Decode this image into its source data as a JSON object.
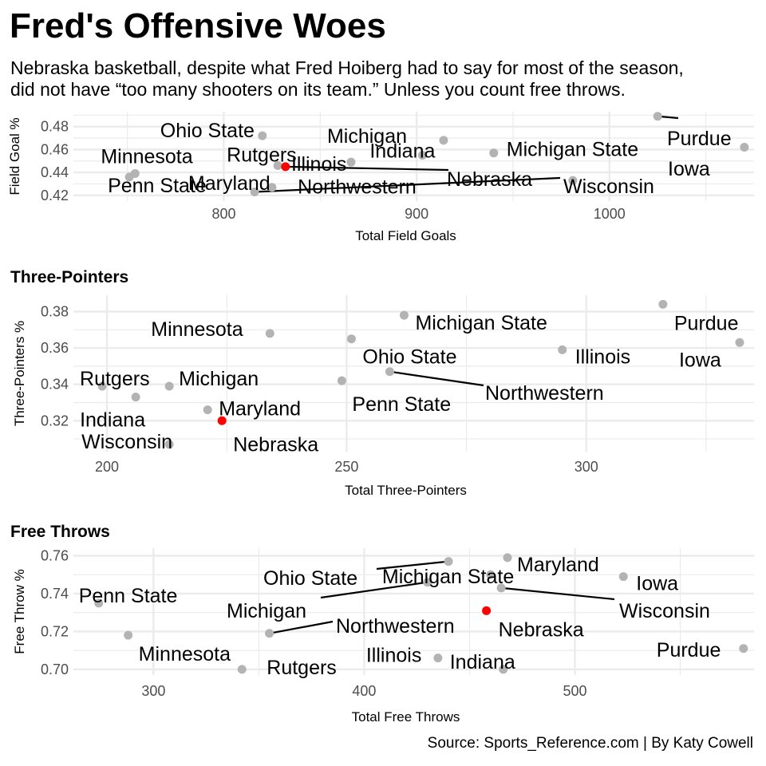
{
  "header": {
    "title": "Fred's Offensive Woes",
    "subtitle_line1": "Nebraska basketball, despite what Fred Hoiberg had to say for most of the season,",
    "subtitle_line2": "did not have “too many shooters on its team.” Unless you count free throws."
  },
  "caption": "Source: Sports_Reference.com | By Katy Cowell",
  "colors": {
    "highlight": "#ff0000",
    "point": "#b3b3b3",
    "grid": "#ebebeb",
    "tick_text": "#4d4d4d",
    "segment": "#000000"
  },
  "chart_data": [
    {
      "type": "scatter",
      "title": "",
      "xlabel": "Total Field Goals",
      "ylabel": "Field Goal %",
      "xlim": [
        722,
        1075
      ],
      "ylim": [
        0.415,
        0.493
      ],
      "xticks": [
        800,
        900,
        1000
      ],
      "yticks": [
        0.42,
        0.44,
        0.46,
        0.48
      ],
      "points": [
        {
          "team": "Ohio State",
          "x": 820,
          "y": 0.472
        },
        {
          "team": "Minnesota",
          "x": 754,
          "y": 0.439
        },
        {
          "team": "Penn State",
          "x": 751,
          "y": 0.436
        },
        {
          "team": "Rutgers",
          "x": 828,
          "y": 0.446
        },
        {
          "team": "Maryland",
          "x": 825,
          "y": 0.427
        },
        {
          "team": "Nebraska",
          "x": 832,
          "y": 0.445,
          "highlight": true
        },
        {
          "team": "Northwestern",
          "x": 816,
          "y": 0.423
        },
        {
          "team": "Illinois",
          "x": 866,
          "y": 0.449
        },
        {
          "team": "Indiana",
          "x": 903,
          "y": 0.455
        },
        {
          "team": "Michigan",
          "x": 914,
          "y": 0.468
        },
        {
          "team": "Michigan State",
          "x": 940,
          "y": 0.457
        },
        {
          "team": "Wisconsin",
          "x": 981,
          "y": 0.433
        },
        {
          "team": "Purdue",
          "x": 1025,
          "y": 0.489
        },
        {
          "team": "Iowa",
          "x": 1070,
          "y": 0.462
        }
      ]
    },
    {
      "type": "scatter",
      "title": "Three-Pointers",
      "xlabel": "Total Three-Pointers",
      "ylabel": "Three-Pointers %",
      "xlim": [
        193,
        335
      ],
      "ylim": [
        0.303,
        0.389
      ],
      "xticks": [
        200,
        250,
        300
      ],
      "yticks": [
        0.32,
        0.34,
        0.36,
        0.38
      ],
      "points": [
        {
          "team": "Minnesota",
          "x": 234,
          "y": 0.368
        },
        {
          "team": "Michigan State",
          "x": 262,
          "y": 0.378
        },
        {
          "team": "Purdue",
          "x": 316,
          "y": 0.384
        },
        {
          "team": "Iowa",
          "x": 332,
          "y": 0.363
        },
        {
          "team": "Illinois",
          "x": 295,
          "y": 0.359
        },
        {
          "team": "Ohio State",
          "x": 251,
          "y": 0.365
        },
        {
          "team": "Northwestern",
          "x": 259,
          "y": 0.347
        },
        {
          "team": "Penn State",
          "x": 249,
          "y": 0.342
        },
        {
          "team": "Rutgers",
          "x": 199,
          "y": 0.339
        },
        {
          "team": "Michigan",
          "x": 213,
          "y": 0.339
        },
        {
          "team": "Indiana",
          "x": 206,
          "y": 0.333
        },
        {
          "team": "Maryland",
          "x": 221,
          "y": 0.326
        },
        {
          "team": "Nebraska",
          "x": 224,
          "y": 0.32,
          "highlight": true
        },
        {
          "team": "Wisconsin",
          "x": 213,
          "y": 0.307
        }
      ]
    },
    {
      "type": "scatter",
      "title": "Free Throws",
      "xlabel": "Total Free Throws",
      "ylabel": "Free Throw %",
      "xlim": [
        262,
        585
      ],
      "ylim": [
        0.697,
        0.764
      ],
      "xticks": [
        300,
        400,
        500
      ],
      "yticks": [
        0.7,
        0.72,
        0.74,
        0.76
      ],
      "points": [
        {
          "team": "Ohio State",
          "x": 440,
          "y": 0.757
        },
        {
          "team": "Maryland",
          "x": 468,
          "y": 0.759
        },
        {
          "team": "Iowa",
          "x": 523,
          "y": 0.749
        },
        {
          "team": "Michigan State",
          "x": 460,
          "y": 0.75
        },
        {
          "team": "Wisconsin",
          "x": 465,
          "y": 0.743
        },
        {
          "team": "Michigan",
          "x": 430,
          "y": 0.746
        },
        {
          "team": "Penn State",
          "x": 274,
          "y": 0.735
        },
        {
          "team": "Nebraska",
          "x": 458,
          "y": 0.731,
          "highlight": true
        },
        {
          "team": "Northwestern",
          "x": 355,
          "y": 0.719
        },
        {
          "team": "Minnesota",
          "x": 288,
          "y": 0.718
        },
        {
          "team": "Rutgers",
          "x": 342,
          "y": 0.7
        },
        {
          "team": "Illinois",
          "x": 435,
          "y": 0.706
        },
        {
          "team": "Indiana",
          "x": 466,
          "y": 0.7
        },
        {
          "team": "Purdue",
          "x": 580,
          "y": 0.711
        }
      ]
    }
  ]
}
